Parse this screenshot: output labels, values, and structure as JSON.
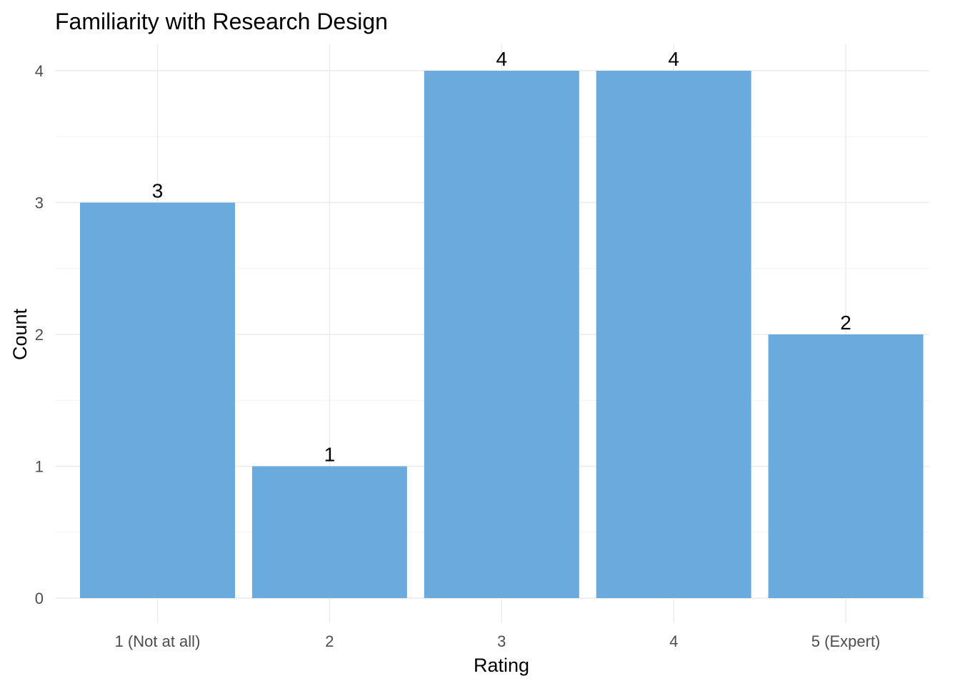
{
  "chart_data": {
    "type": "bar",
    "title": "Familiarity with Research Design",
    "xlabel": "Rating",
    "ylabel": "Count",
    "categories": [
      "1 (Not at all)",
      "2",
      "3",
      "4",
      "5 (Expert)"
    ],
    "values": [
      3,
      1,
      4,
      4,
      2
    ],
    "data_labels": [
      "3",
      "1",
      "4",
      "4",
      "2"
    ],
    "yticks": [
      0,
      1,
      2,
      3,
      4
    ],
    "ylim": [
      0,
      4.2
    ],
    "grid": true,
    "bar_color": "#6baadd"
  }
}
